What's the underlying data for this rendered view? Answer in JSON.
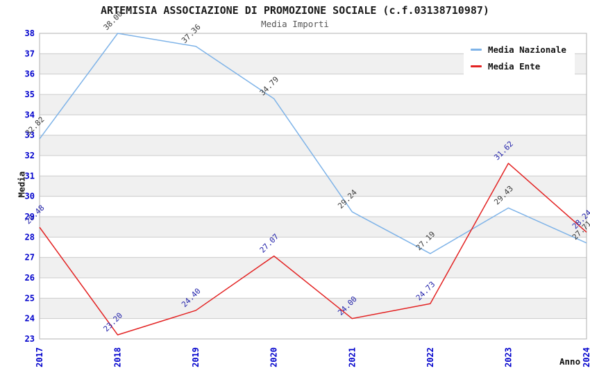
{
  "page": {
    "title": "ARTEMISIA ASSOCIAZIONE DI PROMOZIONE SOCIALE (c.f.03138710987)",
    "subtitle": "Media Importi"
  },
  "legend": {
    "position": "top-right",
    "items": [
      {
        "label": "Media Nazionale",
        "color": "#7eb3e8"
      },
      {
        "label": "Media Ente",
        "color": "#e32222"
      }
    ]
  },
  "axes": {
    "y_title": "Media",
    "x_title": "Anno",
    "tick_color": "#0000cc",
    "y_ticks": [
      23,
      24,
      25,
      26,
      27,
      28,
      29,
      30,
      31,
      32,
      33,
      34,
      35,
      36,
      37,
      38
    ]
  },
  "chart_data": {
    "type": "line",
    "title": "ARTEMISIA ASSOCIAZIONE DI PROMOZIONE SOCIALE (c.f.03138710987)",
    "subtitle": "Media Importi",
    "xlabel": "Anno",
    "ylabel": "Media",
    "categories": [
      "2017",
      "2018",
      "2019",
      "2020",
      "2021",
      "2022",
      "2023",
      "2024"
    ],
    "series": [
      {
        "name": "Media Nazionale",
        "color": "#7eb3e8",
        "label_color": "#3a3a3a",
        "values": [
          32.82,
          38.0,
          37.36,
          34.79,
          29.24,
          27.19,
          29.43,
          27.71
        ]
      },
      {
        "name": "Media Ente",
        "color": "#e32222",
        "label_color": "#2222aa",
        "values": [
          28.48,
          23.2,
          24.4,
          27.07,
          24.0,
          24.73,
          31.62,
          28.24
        ]
      }
    ],
    "ylim": [
      23,
      38
    ],
    "y_tick_step": 1,
    "grid": true,
    "band_fill": "#f0f0f0",
    "gridline_color": "#cccccc",
    "border_color": "#b0b0b0",
    "legend_position": "top-right"
  }
}
